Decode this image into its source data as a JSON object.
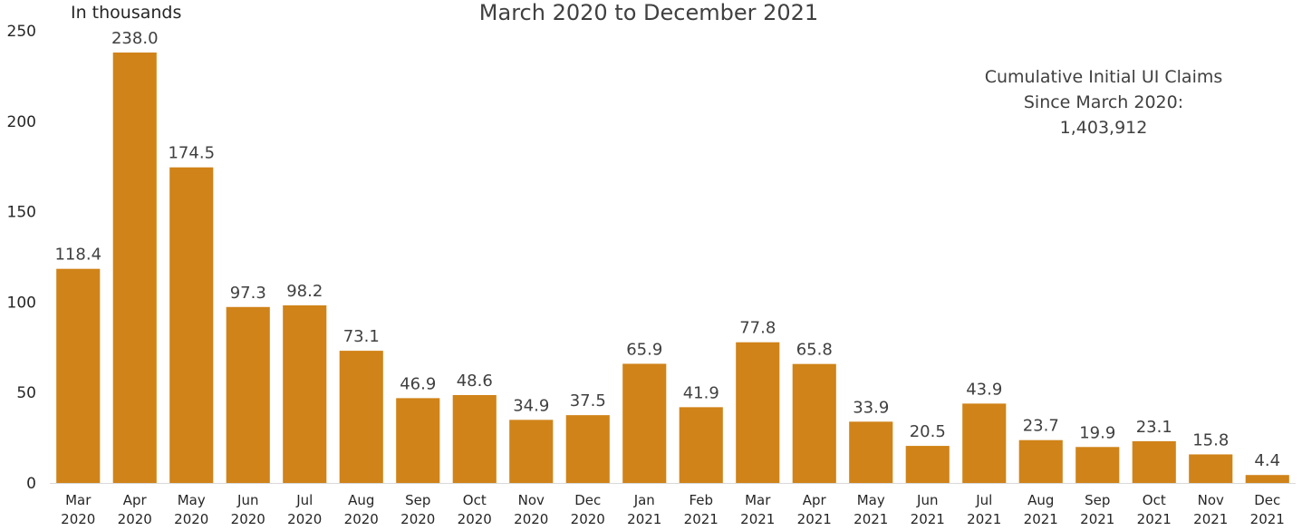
{
  "chart_data": {
    "type": "bar",
    "title": "March 2020 to December 2021",
    "unit_label": "In thousands",
    "ylim": [
      0,
      250
    ],
    "yticks": [
      "0",
      "50",
      "100",
      "150",
      "200",
      "250"
    ],
    "categories": [
      [
        "Mar",
        "2020"
      ],
      [
        "Apr",
        "2020"
      ],
      [
        "May",
        "2020"
      ],
      [
        "Jun",
        "2020"
      ],
      [
        "Jul",
        "2020"
      ],
      [
        "Aug",
        "2020"
      ],
      [
        "Sep",
        "2020"
      ],
      [
        "Oct",
        "2020"
      ],
      [
        "Nov",
        "2020"
      ],
      [
        "Dec",
        "2020"
      ],
      [
        "Jan",
        "2021"
      ],
      [
        "Feb",
        "2021"
      ],
      [
        "Mar",
        "2021"
      ],
      [
        "Apr",
        "2021"
      ],
      [
        "May",
        "2021"
      ],
      [
        "Jun",
        "2021"
      ],
      [
        "Jul",
        "2021"
      ],
      [
        "Aug",
        "2021"
      ],
      [
        "Sep",
        "2021"
      ],
      [
        "Oct",
        "2021"
      ],
      [
        "Nov",
        "2021"
      ],
      [
        "Dec",
        "2021"
      ]
    ],
    "values": [
      118.4,
      238.0,
      174.5,
      97.3,
      98.2,
      73.1,
      46.9,
      48.6,
      34.9,
      37.5,
      65.9,
      41.9,
      77.8,
      65.8,
      33.9,
      20.5,
      43.9,
      23.7,
      19.9,
      23.1,
      15.8,
      4.4
    ],
    "data_labels": [
      "118.4",
      "238.0",
      "174.5",
      "97.3",
      "98.2",
      "73.1",
      "46.9",
      "48.6",
      "34.9",
      "37.5",
      "65.9",
      "41.9",
      "77.8",
      "65.8",
      "33.9",
      "20.5",
      "43.9",
      "23.7",
      "19.9",
      "23.1",
      "15.8",
      "4.4"
    ],
    "bar_color": "#D08318",
    "annotation": [
      "Cumulative Initial UI Claims",
      "Since March 2020:",
      "1,403,912"
    ],
    "grid": false
  }
}
